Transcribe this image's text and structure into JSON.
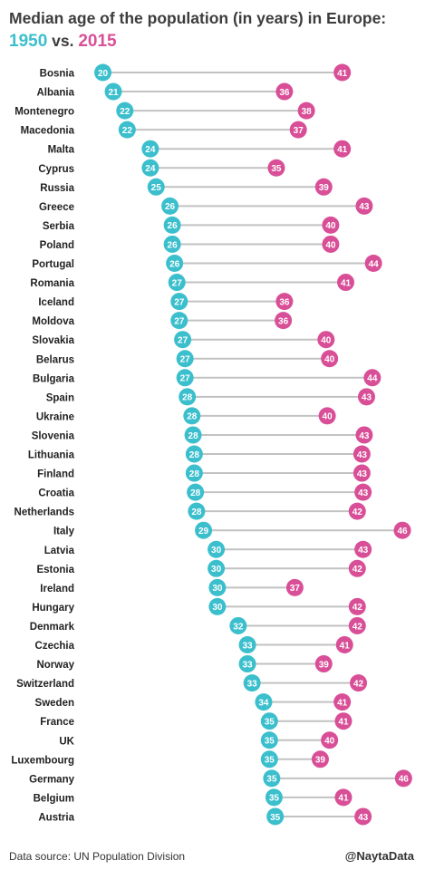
{
  "chart_data": {
    "type": "dumbbell",
    "title_prefix": "Median age of the population (in years) in Europe:",
    "year_a": "1950",
    "title_vs": "vs.",
    "year_b": "2015",
    "series": [
      {
        "name": "1950",
        "color": "#3bbfcd"
      },
      {
        "name": "2015",
        "color": "#d94f97"
      }
    ],
    "x_range": [
      20,
      46
    ],
    "grid": false,
    "categories": [
      "Bosnia",
      "Albania",
      "Montenegro",
      "Macedonia",
      "Malta",
      "Cyprus",
      "Russia",
      "Greece",
      "Serbia",
      "Poland",
      "Portugal",
      "Romania",
      "Iceland",
      "Moldova",
      "Slovakia",
      "Belarus",
      "Bulgaria",
      "Spain",
      "Ukraine",
      "Slovenia",
      "Lithuania",
      "Finland",
      "Croatia",
      "Netherlands",
      "Italy",
      "Latvia",
      "Estonia",
      "Ireland",
      "Hungary",
      "Denmark",
      "Czechia",
      "Norway",
      "Switzerland",
      "Sweden",
      "France",
      "UK",
      "Luxembourg",
      "Germany",
      "Belgium",
      "Austria"
    ],
    "values_1950": [
      20.2,
      21.1,
      22.1,
      22.3,
      24.3,
      24.3,
      24.8,
      26.0,
      26.2,
      26.2,
      26.4,
      26.6,
      26.8,
      26.8,
      27.1,
      27.3,
      27.3,
      27.5,
      27.9,
      28.0,
      28.1,
      28.1,
      28.2,
      28.3,
      28.9,
      30.0,
      30.0,
      30.1,
      30.1,
      31.9,
      32.7,
      32.7,
      33.1,
      34.1,
      34.6,
      34.6,
      34.6,
      34.8,
      35.0,
      35.1
    ],
    "values_2015": [
      40.9,
      35.9,
      37.8,
      37.1,
      40.9,
      35.2,
      39.3,
      42.8,
      39.9,
      39.9,
      43.6,
      41.2,
      35.9,
      35.8,
      39.5,
      39.8,
      43.5,
      43.0,
      39.6,
      42.8,
      42.6,
      42.6,
      42.7,
      42.2,
      46.1,
      42.7,
      42.2,
      36.8,
      42.2,
      42.2,
      41.1,
      39.3,
      42.3,
      40.9,
      41.0,
      39.8,
      39.0,
      46.2,
      41.0,
      42.7
    ]
  },
  "footer": {
    "source": "Data source: UN Population Division",
    "credit": "@NaytaData"
  }
}
